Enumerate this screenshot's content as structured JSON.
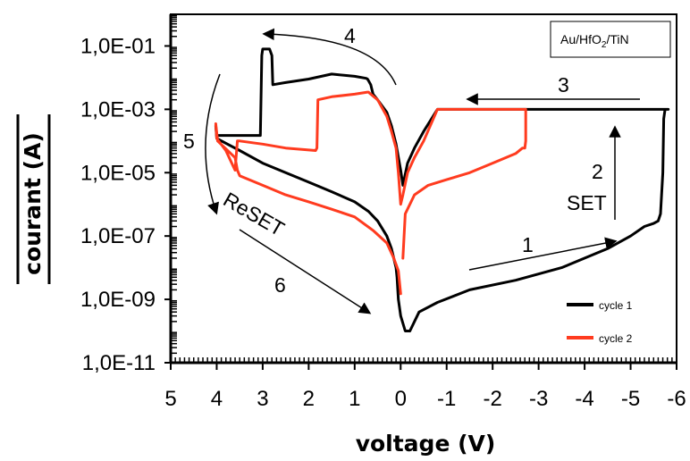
{
  "chart_data": {
    "type": "line",
    "title": "",
    "xlabel": "voltage (V)",
    "ylabel": "courant (A)",
    "x_reversed": true,
    "xlim": [
      5,
      -6
    ],
    "x_ticks": [
      5,
      4,
      3,
      2,
      1,
      0,
      -1,
      -2,
      -3,
      -4,
      -5,
      -6
    ],
    "x_tick_labels": [
      "5",
      "4",
      "3",
      "2",
      "1",
      "0",
      "-1",
      "-2",
      "-3",
      "-4",
      "-5",
      "-6"
    ],
    "y_scale": "log",
    "ylim": [
      1e-11,
      1
    ],
    "y_ticks": [
      1e-11,
      1e-09,
      1e-07,
      1e-05,
      0.001,
      0.1
    ],
    "y_tick_labels": [
      "1,0E-11",
      "1,0E-09",
      "1,0E-07",
      "1,0E-05",
      "1,0E-03",
      "1,0E-01"
    ],
    "grid": false,
    "legend_position": "bottom-right",
    "inset_label": {
      "main": "Au/HfO",
      "sub": "2",
      "tail": "/TiN"
    },
    "annotations": [
      "1",
      "2",
      "SET",
      "3",
      "4",
      "5",
      "ReSET",
      "6"
    ],
    "series": [
      {
        "name": "cycle 1",
        "color": "#000000",
        "x": [
          -0.2,
          -0.4,
          -0.8,
          -1.5,
          -2.5,
          -3.5,
          -4.5,
          -5.0,
          -5.3,
          -5.5,
          -5.6,
          -5.65,
          -5.7,
          -5.72,
          -5.75,
          -5.8,
          -5.82,
          -5.8,
          -5.5,
          -4,
          -3,
          -2,
          -1.2,
          -0.8,
          -0.5,
          -0.3,
          -0.15,
          -0.05,
          0,
          0.1,
          0.2,
          0.3,
          0.5,
          0.6,
          0.65,
          0.7,
          0.72,
          0.75,
          1,
          1.5,
          2,
          2.5,
          2.78,
          2.8,
          2.85,
          2.9,
          3.0,
          3.02,
          3.05,
          3.3,
          3.5,
          4.0,
          4.02,
          4.0,
          3.5,
          3,
          2.5,
          2,
          1.5,
          1,
          0.7,
          0.5,
          0.3,
          0.2,
          0.1,
          0.08,
          0.05,
          0,
          -0.1,
          -0.2
        ],
        "y": [
          1e-10,
          4e-10,
          8e-10,
          2e-09,
          4e-09,
          1e-08,
          4e-08,
          1e-07,
          2e-07,
          2.5e-07,
          3e-07,
          5e-07,
          1e-05,
          0.0005,
          0.001,
          0.001,
          0.001,
          0.001,
          0.001,
          0.001,
          0.001,
          0.001,
          0.001,
          0.001,
          0.0002,
          6e-05,
          2e-05,
          4e-06,
          1.2e-05,
          8e-05,
          0.0003,
          0.0008,
          0.002,
          0.003,
          0.006,
          0.008,
          0.009,
          0.0095,
          0.011,
          0.013,
          0.009,
          0.007,
          0.006,
          0.05,
          0.08,
          0.08,
          0.08,
          0.05,
          0.00015,
          0.00015,
          0.00015,
          0.00015,
          0.0003,
          0.00012,
          5e-05,
          2e-05,
          1e-05,
          5e-06,
          2.5e-06,
          1.2e-06,
          6e-07,
          3e-07,
          1e-07,
          4e-08,
          1e-08,
          5e-09,
          1e-09,
          3e-10,
          1e-10,
          1e-10
        ]
      },
      {
        "name": "cycle 2",
        "color": "#ff3b1f",
        "x": [
          -0.05,
          -0.1,
          -0.3,
          -0.6,
          -1,
          -1.5,
          -2,
          -2.5,
          -2.65,
          -2.7,
          -2.72,
          -2.72,
          -2,
          -1,
          -0.8,
          -0.5,
          -0.3,
          -0.15,
          -0.05,
          0,
          0.05,
          0.1,
          0.2,
          0.3,
          0.5,
          0.65,
          0.7,
          0.72,
          1,
          1.5,
          1.8,
          1.82,
          1.85,
          2.5,
          3,
          3.5,
          3.55,
          3.6,
          3.8,
          4.0,
          4.02,
          3.98,
          3.6,
          3.55,
          3.5,
          3.0,
          2.5,
          2.0,
          1.5,
          1.0,
          0.6,
          0.3,
          0.15,
          0.05,
          0
        ],
        "y": [
          2e-08,
          5e-07,
          2e-06,
          4e-06,
          6e-06,
          1e-05,
          2e-05,
          4e-05,
          6e-05,
          6e-05,
          0.0001,
          0.001,
          0.001,
          0.001,
          0.001,
          0.0001,
          3e-05,
          1e-05,
          2e-06,
          1e-06,
          1e-05,
          6e-05,
          0.0002,
          0.0006,
          0.002,
          0.003,
          0.0035,
          0.0035,
          0.003,
          0.0025,
          0.002,
          6e-05,
          5e-05,
          6e-05,
          8e-05,
          0.0001,
          0.0001,
          1.2e-05,
          5e-05,
          0.00012,
          0.00035,
          0.0001,
          3e-05,
          1.2e-05,
          8e-06,
          4e-06,
          2e-06,
          1.2e-06,
          7e-07,
          4e-07,
          1.5e-07,
          6e-08,
          2e-08,
          8e-09,
          1.5e-09
        ]
      }
    ]
  }
}
